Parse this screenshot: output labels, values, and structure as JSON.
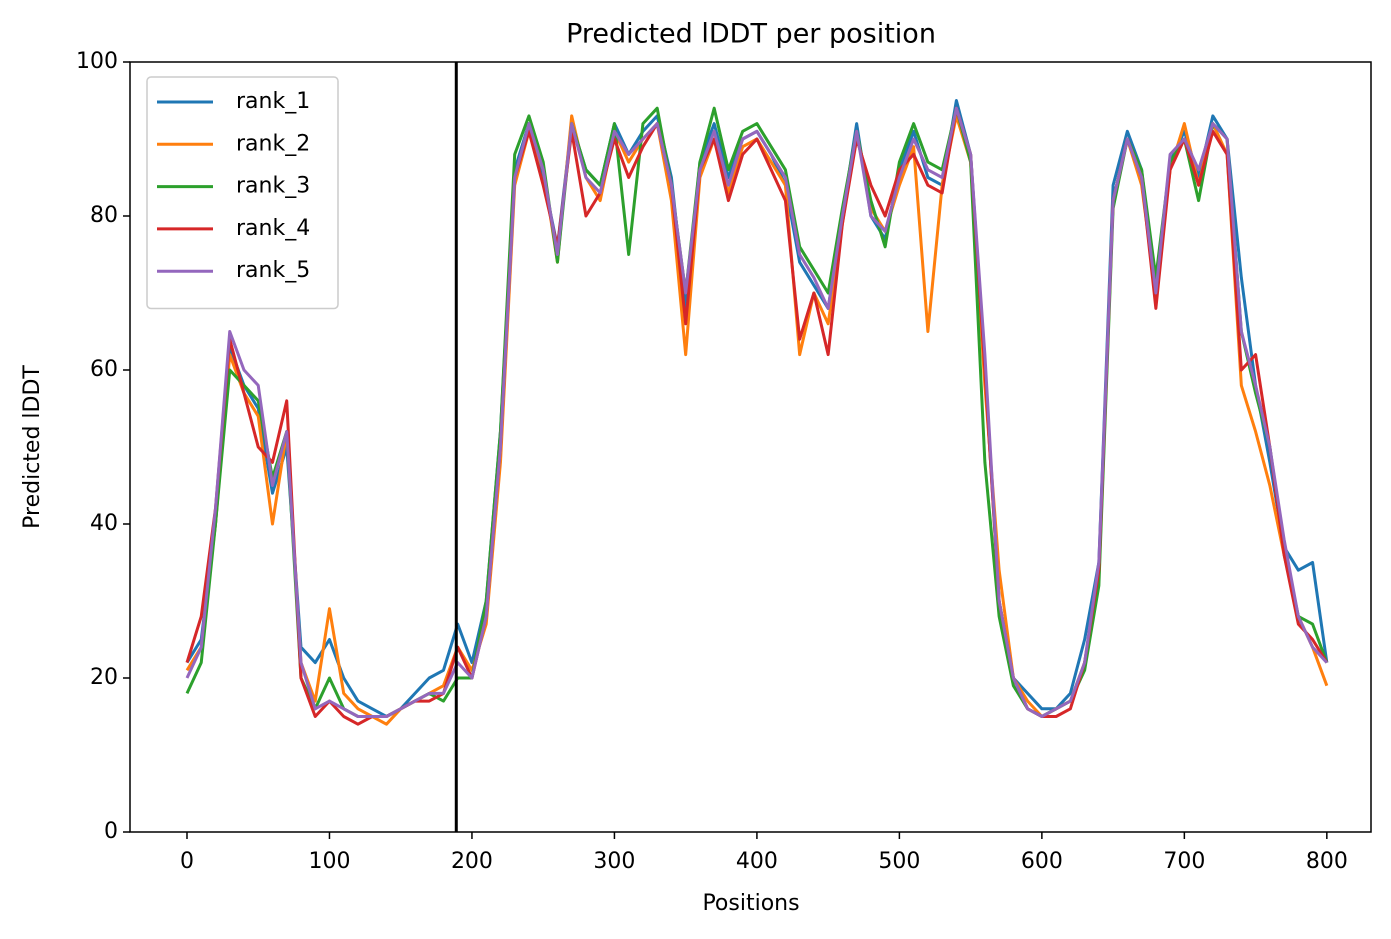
{
  "chart_data": {
    "type": "line",
    "title": "Predicted lDDT per position",
    "xlabel": "Positions",
    "ylabel": "Predicted lDDT",
    "x": [
      0,
      10,
      20,
      30,
      40,
      50,
      60,
      70,
      80,
      90,
      100,
      110,
      120,
      130,
      140,
      150,
      160,
      170,
      180,
      190,
      200,
      210,
      220,
      230,
      240,
      250,
      260,
      270,
      280,
      290,
      300,
      310,
      320,
      330,
      340,
      350,
      360,
      370,
      380,
      390,
      400,
      410,
      420,
      430,
      440,
      450,
      460,
      470,
      480,
      490,
      500,
      510,
      520,
      530,
      540,
      550,
      560,
      570,
      580,
      590,
      600,
      610,
      620,
      630,
      640,
      650,
      660,
      670,
      680,
      690,
      700,
      710,
      720,
      730,
      740,
      750,
      760,
      770,
      780,
      790,
      800
    ],
    "series": [
      {
        "name": "rank_1",
        "color": "#1f77b4",
        "values": [
          22,
          25,
          40,
          63,
          58,
          55,
          44,
          50,
          24,
          22,
          25,
          20,
          17,
          16,
          15,
          16,
          18,
          20,
          21,
          27,
          22,
          30,
          52,
          86,
          92,
          85,
          76,
          92,
          86,
          84,
          92,
          88,
          91,
          93,
          85,
          68,
          87,
          92,
          85,
          90,
          91,
          88,
          84,
          74,
          71,
          68,
          80,
          92,
          80,
          77,
          86,
          91,
          85,
          84,
          95,
          88,
          60,
          30,
          20,
          18,
          16,
          16,
          18,
          25,
          35,
          84,
          91,
          86,
          70,
          87,
          91,
          85,
          93,
          90,
          72,
          58,
          48,
          37,
          34,
          35,
          22
        ]
      },
      {
        "name": "rank_2",
        "color": "#ff7f0e",
        "values": [
          21,
          24,
          40,
          62,
          57,
          54,
          40,
          52,
          22,
          17,
          29,
          18,
          16,
          15,
          14,
          16,
          17,
          18,
          19,
          24,
          21,
          27,
          48,
          84,
          91,
          86,
          74,
          93,
          85,
          82,
          91,
          87,
          90,
          92,
          82,
          62,
          85,
          90,
          83,
          89,
          90,
          87,
          84,
          62,
          70,
          66,
          79,
          91,
          81,
          78,
          84,
          89,
          65,
          84,
          93,
          87,
          58,
          34,
          20,
          17,
          15,
          16,
          17,
          22,
          33,
          82,
          90,
          84,
          70,
          86,
          92,
          84,
          92,
          88,
          58,
          52,
          45,
          36,
          28,
          24,
          19
        ]
      },
      {
        "name": "rank_3",
        "color": "#2ca02c",
        "values": [
          18,
          22,
          40,
          60,
          58,
          56,
          46,
          52,
          20,
          16,
          20,
          16,
          15,
          15,
          15,
          16,
          17,
          18,
          17,
          20,
          20,
          30,
          52,
          88,
          93,
          87,
          74,
          92,
          86,
          84,
          92,
          75,
          92,
          94,
          84,
          70,
          87,
          94,
          86,
          91,
          92,
          89,
          86,
          76,
          73,
          70,
          81,
          91,
          82,
          76,
          87,
          92,
          87,
          86,
          94,
          87,
          48,
          28,
          19,
          16,
          15,
          16,
          17,
          21,
          32,
          81,
          90,
          86,
          72,
          87,
          90,
          82,
          92,
          90,
          65,
          57,
          50,
          37,
          28,
          27,
          22
        ]
      },
      {
        "name": "rank_4",
        "color": "#d62728",
        "values": [
          22,
          28,
          42,
          64,
          57,
          50,
          48,
          56,
          20,
          15,
          17,
          15,
          14,
          15,
          15,
          16,
          17,
          17,
          18,
          24,
          20,
          28,
          50,
          85,
          91,
          84,
          76,
          91,
          80,
          83,
          90,
          85,
          89,
          92,
          84,
          66,
          86,
          90,
          82,
          88,
          90,
          86,
          82,
          64,
          70,
          62,
          79,
          90,
          84,
          80,
          86,
          88,
          84,
          83,
          94,
          88,
          60,
          30,
          20,
          16,
          15,
          15,
          16,
          22,
          34,
          82,
          90,
          85,
          68,
          86,
          90,
          84,
          91,
          88,
          60,
          62,
          50,
          36,
          27,
          25,
          22
        ]
      },
      {
        "name": "rank_5",
        "color": "#9467bd",
        "values": [
          20,
          24,
          42,
          65,
          60,
          58,
          45,
          52,
          22,
          16,
          17,
          16,
          15,
          15,
          15,
          16,
          17,
          18,
          18,
          22,
          20,
          28,
          50,
          85,
          92,
          86,
          75,
          92,
          85,
          83,
          91,
          88,
          90,
          92,
          84,
          70,
          86,
          91,
          84,
          90,
          91,
          88,
          85,
          75,
          72,
          68,
          80,
          91,
          80,
          78,
          85,
          90,
          86,
          85,
          94,
          88,
          62,
          30,
          20,
          16,
          15,
          16,
          17,
          22,
          35,
          82,
          90,
          85,
          70,
          88,
          90,
          86,
          92,
          90,
          65,
          58,
          50,
          38,
          28,
          24,
          22
        ]
      }
    ],
    "vlines": [
      189
    ],
    "vline_color": "#000000",
    "xlim": [
      -40,
      831
    ],
    "xticks": [
      0,
      100,
      200,
      300,
      400,
      500,
      600,
      700,
      800
    ],
    "ylim": [
      0,
      100
    ],
    "yticks": [
      0,
      20,
      40,
      60,
      80,
      100
    ],
    "grid": false,
    "legend": "upper left"
  }
}
